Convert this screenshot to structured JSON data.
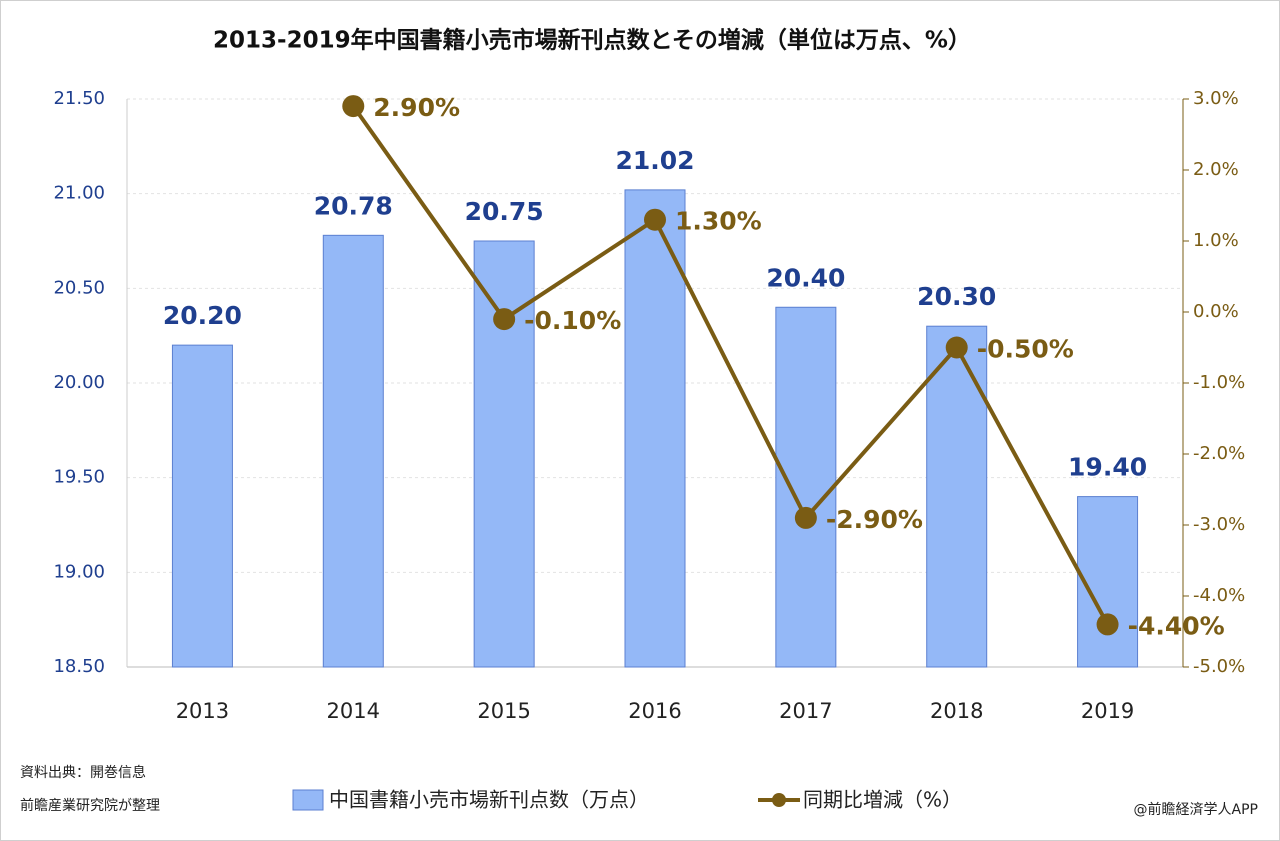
{
  "chart_data": {
    "type": "bar_line",
    "title": "2013-2019年中国書籍小売市場新刊点数とその増減（単位は万点、%）",
    "categories": [
      "2013",
      "2014",
      "2015",
      "2016",
      "2017",
      "2018",
      "2019"
    ],
    "series": [
      {
        "name": "中国書籍小売市場新刊点数（万点）",
        "type": "bar",
        "color": "#94b8f7",
        "edge_color": "#5b7fd0",
        "label_color": "#1f3f8f",
        "values": [
          20.2,
          20.78,
          20.75,
          21.02,
          20.4,
          20.3,
          19.4
        ],
        "value_labels": [
          "20.20",
          "20.78",
          "20.75",
          "21.02",
          "20.40",
          "20.30",
          "19.40"
        ]
      },
      {
        "name": "同期比増減（%）",
        "type": "line",
        "axis": "y2",
        "color": "#7a5c14",
        "label_color": "#7a5c14",
        "values": [
          null,
          2.9,
          -0.1,
          1.3,
          -2.9,
          -0.5,
          -4.4
        ],
        "value_labels": [
          null,
          "2.90%",
          "-0.10%",
          "1.30%",
          "-2.90%",
          "-0.50%",
          "-4.40%"
        ]
      }
    ],
    "ylim": [
      18.5,
      21.5
    ],
    "yticks": [
      {
        "value": 18.5,
        "label": "18.50"
      },
      {
        "value": 19,
        "label": "19.00"
      },
      {
        "value": 19.5,
        "label": "19.50"
      },
      {
        "value": 20,
        "label": "20.00"
      },
      {
        "value": 20.5,
        "label": "20.50"
      },
      {
        "value": 21,
        "label": "21.00"
      },
      {
        "value": 21.5,
        "label": "21.50"
      }
    ],
    "y2lim": [
      -5,
      3
    ],
    "y2ticks": [
      {
        "value": -5,
        "label": "-5.0%"
      },
      {
        "value": -4,
        "label": "-4.0%"
      },
      {
        "value": -3,
        "label": "-3.0%"
      },
      {
        "value": -2,
        "label": "-2.0%"
      },
      {
        "value": -1,
        "label": "-1.0%"
      },
      {
        "value": 0,
        "label": "0.0%"
      },
      {
        "value": 1,
        "label": "1.0%"
      },
      {
        "value": 2,
        "label": "2.0%"
      },
      {
        "value": 3,
        "label": "3.0%"
      }
    ],
    "grid": true,
    "legend": "bottom",
    "notes": [
      "資料出典：開巻信息",
      "前瞻産業研究院が整理"
    ],
    "credit": "@前瞻経済学人APP"
  }
}
